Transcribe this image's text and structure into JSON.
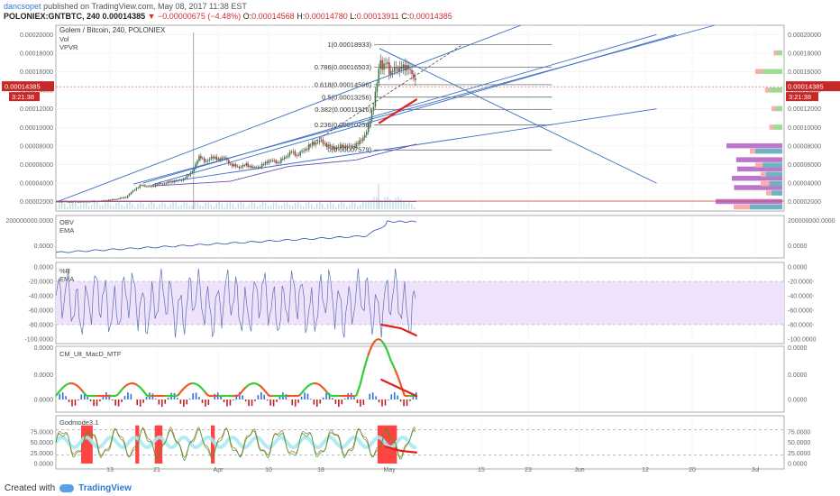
{
  "header": {
    "author": "dancsopet",
    "published": "published on TradingView.com, May 08, 2017 11:38 EST",
    "symbol": "POLONIEX:GNTBTC, 240",
    "last": "0.00014385",
    "change": "▼ −0.00000675 (−4.48%)",
    "open_label": "O:",
    "open": "0.00014568",
    "high_label": "H:",
    "high": "0.00014780",
    "low_label": "L:",
    "low": "0.00013911",
    "close_label": "C:",
    "close": "0.00014385"
  },
  "footer": {
    "created_with": "Created with",
    "brand": "TradingView"
  },
  "colors": {
    "up": "#2e7d32",
    "down": "#c62828",
    "trend": "#3d6fc4",
    "red_line": "#e02020",
    "wr_band": "#efe3fb",
    "vol_green": "#8fe28f",
    "vol_red": "#f7a5a5",
    "vol_purple": "#b05fc4",
    "vol_teal": "#5fb3c4"
  },
  "chart_data": {
    "type": "candlestick",
    "title": "Golem / Bitcoin, 240, POLONIEX",
    "indicators_main": [
      "Vol",
      "VPVR"
    ],
    "last_price_label": "0.00014385",
    "last_time_label": "3:21:38",
    "x_tick_labels": [
      "13",
      "21",
      "Apr",
      "10",
      "18",
      "May",
      "15",
      "23",
      "Jun",
      "12",
      "20",
      "Jul"
    ],
    "price_axis": {
      "min": 1e-05,
      "max": 0.00021,
      "ticks": [
        "0.00002000",
        "0.00004000",
        "0.00006000",
        "0.00008000",
        "0.00010000",
        "0.00012000",
        "0.00014000",
        "0.00016000",
        "0.00018000",
        "0.00020000"
      ]
    },
    "price_path": [
      [
        0,
        2e-05
      ],
      [
        12,
        1.98e-05
      ],
      [
        22,
        2.05e-05
      ],
      [
        30,
        2.25e-05
      ],
      [
        36,
        2.5e-05
      ],
      [
        40,
        3.3e-05
      ],
      [
        44,
        3.8e-05
      ],
      [
        48,
        3.6e-05
      ],
      [
        52,
        3.9e-05
      ],
      [
        56,
        4e-05
      ],
      [
        60,
        4.2e-05
      ],
      [
        64,
        4.3e-05
      ],
      [
        68,
        4.8e-05
      ],
      [
        71,
        5.6e-05
      ],
      [
        74,
        7e-05
      ],
      [
        77,
        6.2e-05
      ],
      [
        80,
        6.9e-05
      ],
      [
        83,
        6.5e-05
      ],
      [
        86,
        6.8e-05
      ],
      [
        90,
        6e-05
      ],
      [
        94,
        5.7e-05
      ],
      [
        98,
        6e-05
      ],
      [
        102,
        5.6e-05
      ],
      [
        106,
        5.9e-05
      ],
      [
        110,
        6.5e-05
      ],
      [
        114,
        6.2e-05
      ],
      [
        118,
        6.8e-05
      ],
      [
        121,
        7.4e-05
      ],
      [
        124,
        7e-05
      ],
      [
        128,
        7.6e-05
      ],
      [
        132,
        8.2e-05
      ],
      [
        136,
        8.6e-05
      ],
      [
        140,
        8e-05
      ],
      [
        144,
        7.8e-05
      ],
      [
        148,
        8e-05
      ],
      [
        152,
        7.9e-05
      ],
      [
        156,
        8.3e-05
      ],
      [
        160,
        9.5e-05
      ],
      [
        162,
        0.00011
      ],
      [
        164,
        0.00013
      ],
      [
        166,
        0.000155
      ],
      [
        167,
        0.000175
      ],
      [
        168,
        0.000165
      ],
      [
        170,
        0.00017
      ],
      [
        172,
        0.000158
      ],
      [
        174,
        0.000165
      ],
      [
        176,
        0.00016
      ],
      [
        178,
        0.000168
      ],
      [
        180,
        0.000162
      ],
      [
        182,
        0.000165
      ],
      [
        184,
        0.000156
      ],
      [
        185,
        0.000148
      ],
      [
        186,
        0.0001438
      ]
    ],
    "volume_spike_day": 71,
    "fibonacci": [
      {
        "label": "1(0.00018933)",
        "value": 0.00018933
      },
      {
        "label": "0.786(0.00016503)",
        "value": 0.00016503
      },
      {
        "label": "0.618(0.00014596)",
        "value": 0.00014596
      },
      {
        "label": "0.5(0.00013256)",
        "value": 0.00013256
      },
      {
        "label": "0.382(0.00011916)",
        "value": 0.00011916
      },
      {
        "label": "0.236(0.00010258)",
        "value": 0.00010258
      },
      {
        "label": "0(0.00007579)",
        "value": 7.579e-05
      }
    ],
    "trend_lines": [
      [
        [
          0,
          1.95e-05
        ],
        [
          240,
          0.00021
        ]
      ],
      [
        [
          40,
          3.9e-05
        ],
        [
          340,
          0.00021
        ]
      ],
      [
        [
          50,
          3.85e-05
        ],
        [
          320,
          0.0002
        ]
      ],
      [
        [
          60,
          4.2e-05
        ],
        [
          310,
          0.00012
        ]
      ],
      [
        [
          45,
          4e-05
        ],
        [
          310,
          0.0002
        ]
      ],
      [
        [
          167,
          0.000185
        ],
        [
          310,
          4e-05
        ]
      ],
      [
        [
          167,
          0.000185
        ],
        [
          186,
          0.000166
        ]
      ]
    ],
    "dashed_line": [
      [
        130,
        8e-05
      ],
      [
        210,
        0.00018933
      ]
    ],
    "divergence_price": [
      [
        167,
        0.000105
      ],
      [
        186,
        0.00013
      ]
    ],
    "vpvr_rows": [
      {
        "price": 2e-05,
        "green": 0.3,
        "red": 0.45,
        "purple": 0.45
      },
      {
        "price": 3.5e-05,
        "green": 0.1,
        "red": 0.15,
        "purple": 0.28
      },
      {
        "price": 4.5e-05,
        "green": 0.12,
        "red": 0.2,
        "purple": 0.3
      },
      {
        "price": 5.5e-05,
        "green": 0.15,
        "red": 0.2,
        "purple": 0.25
      },
      {
        "price": 6.5e-05,
        "green": 0.18,
        "red": 0.25,
        "purple": 0.26
      },
      {
        "price": 8e-05,
        "green": 0.25,
        "red": 0.3,
        "purple": 0.35
      },
      {
        "price": 0.0001,
        "green": 0.08,
        "red": 0.12,
        "purple": 0.0
      },
      {
        "price": 0.00012,
        "green": 0.06,
        "red": 0.1,
        "purple": 0.0
      },
      {
        "price": 0.00014,
        "green": 0.12,
        "red": 0.16,
        "purple": 0.0
      },
      {
        "price": 0.00016,
        "green": 0.18,
        "red": 0.25,
        "purple": 0.0
      },
      {
        "price": 0.00018,
        "green": 0.05,
        "red": 0.08,
        "purple": 0.0
      }
    ],
    "obv": {
      "name": "OBV",
      "ema_label": "EMA",
      "ticks": [
        "200000000.0000",
        "0.0000"
      ]
    },
    "williams": {
      "name": "%R",
      "ema_label": "EMA",
      "ticks": [
        "0.0000",
        "-20.0000",
        "-40.0000",
        "-60.0000",
        "-80.0000",
        "-100.0000"
      ],
      "upper_band": -20,
      "lower_band": -80
    },
    "macd": {
      "name": "CM_Ult_MacD_MTF",
      "ticks": [
        "0.0000",
        "0.0000",
        "0.0000"
      ]
    },
    "godmode": {
      "name": "Godmode3.1",
      "ticks": [
        "75.0000",
        "50.0000",
        "25.0000",
        "0.0000"
      ],
      "upper_band": 80,
      "lower_band": 20
    }
  }
}
